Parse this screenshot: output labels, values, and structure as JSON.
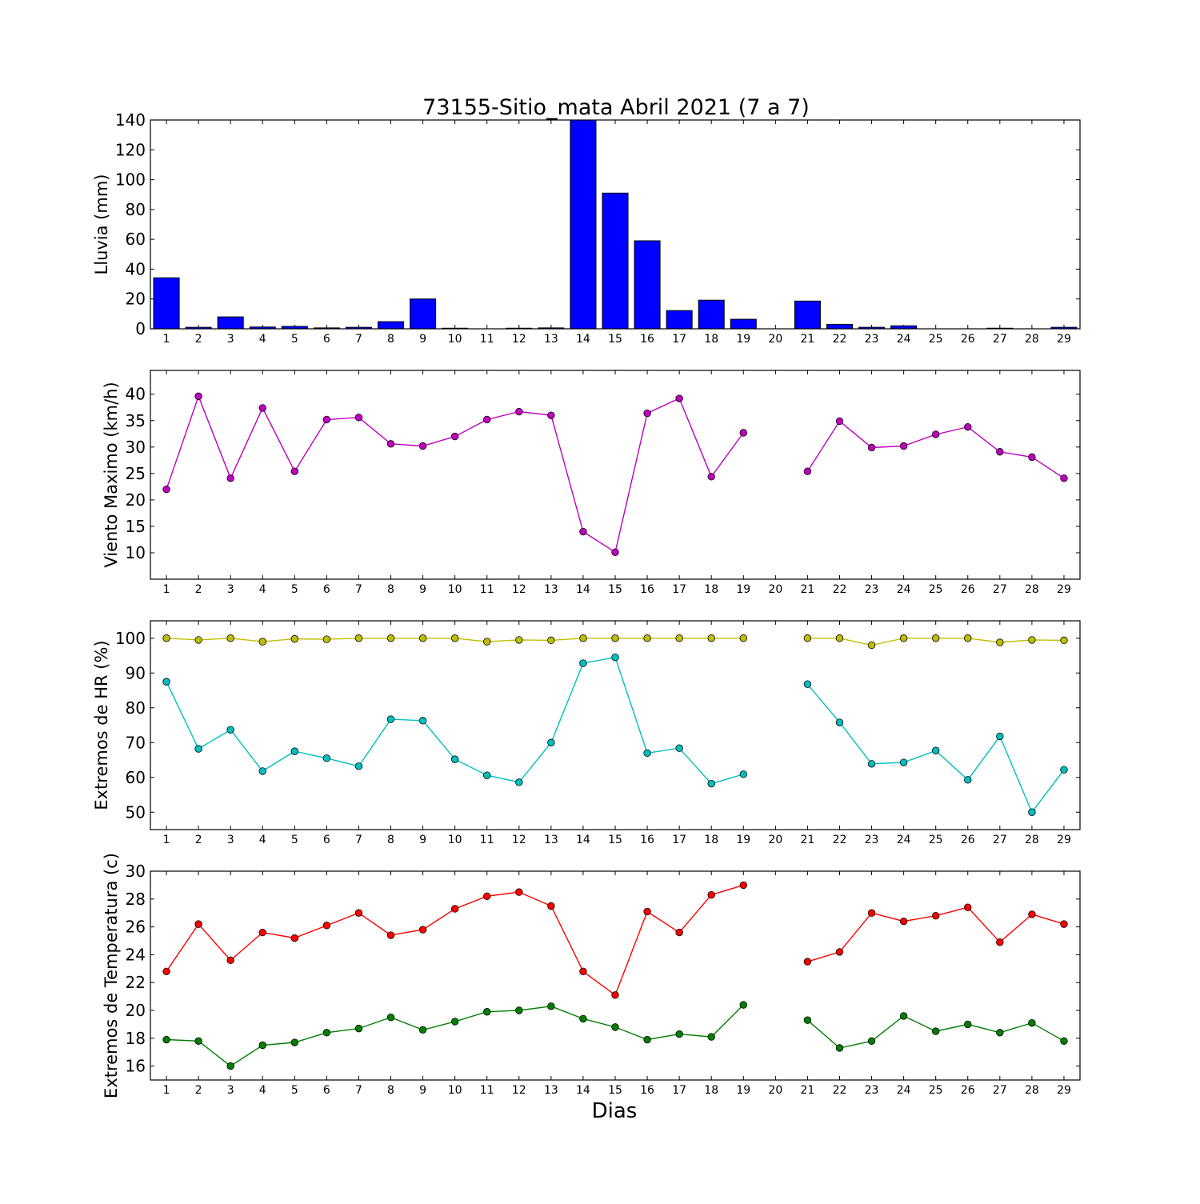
{
  "title": "73155-Sitio_mata Abril 2021  (7 a 7)",
  "xlabel": "Dias",
  "colors": {
    "rain": "#0000ff",
    "wind": "#bf00bf",
    "hr_max": "#bfbf00",
    "hr_min": "#00bfbf",
    "temp_max": "#ff0000",
    "temp_min": "#007f00"
  },
  "chart_data": [
    {
      "type": "bar",
      "ylabel": "Lluvia (mm)",
      "ylim": [
        0,
        140
      ],
      "yticks": [
        0,
        20,
        40,
        60,
        80,
        100,
        120,
        140
      ],
      "xlim": [
        0.5,
        29.5
      ],
      "categories": [
        1,
        2,
        3,
        4,
        5,
        6,
        7,
        8,
        9,
        10,
        11,
        12,
        13,
        14,
        15,
        16,
        17,
        18,
        19,
        20,
        21,
        22,
        23,
        24,
        25,
        26,
        27,
        28,
        29
      ],
      "series": [
        {
          "color_key": "rain",
          "values": [
            34.2,
            1.0,
            8.0,
            1.2,
            1.6,
            0.6,
            1.0,
            4.8,
            20.0,
            0.4,
            0,
            0.4,
            0.6,
            145.0,
            91.0,
            59.0,
            12.2,
            19.2,
            6.4,
            null,
            18.6,
            3.0,
            1.0,
            2.0,
            0,
            0,
            0.4,
            0,
            1.0
          ]
        }
      ]
    },
    {
      "type": "line",
      "ylabel": "Viento Maximo (km/h)",
      "ylim": [
        5,
        44.5
      ],
      "yticks": [
        10,
        15,
        20,
        25,
        30,
        35,
        40
      ],
      "xlim": [
        0.5,
        29.5
      ],
      "categories": [
        1,
        2,
        3,
        4,
        5,
        6,
        7,
        8,
        9,
        10,
        11,
        12,
        13,
        14,
        15,
        16,
        17,
        18,
        19,
        20,
        21,
        22,
        23,
        24,
        25,
        26,
        27,
        28,
        29
      ],
      "series": [
        {
          "color_key": "wind",
          "values": [
            22.0,
            39.6,
            24.1,
            37.4,
            25.4,
            35.2,
            35.6,
            30.6,
            30.2,
            32.0,
            35.2,
            36.7,
            36.0,
            14.0,
            10.1,
            36.4,
            39.2,
            24.4,
            32.7,
            null,
            25.4,
            34.9,
            29.9,
            30.2,
            32.4,
            33.8,
            29.1,
            28.1,
            24.1
          ]
        }
      ]
    },
    {
      "type": "line",
      "ylabel": "Extremos de HR (%)",
      "ylim": [
        45,
        105
      ],
      "yticks": [
        50,
        60,
        70,
        80,
        90,
        100
      ],
      "xlim": [
        0.5,
        29.5
      ],
      "categories": [
        1,
        2,
        3,
        4,
        5,
        6,
        7,
        8,
        9,
        10,
        11,
        12,
        13,
        14,
        15,
        16,
        17,
        18,
        19,
        20,
        21,
        22,
        23,
        24,
        25,
        26,
        27,
        28,
        29
      ],
      "series": [
        {
          "color_key": "hr_max",
          "values": [
            100,
            99.5,
            100,
            99,
            99.8,
            99.7,
            100,
            100,
            100,
            100,
            99,
            99.5,
            99.4,
            100,
            100,
            100,
            100,
            100,
            100,
            null,
            100,
            100,
            98,
            100,
            100,
            100,
            98.8,
            99.5,
            99.4
          ]
        },
        {
          "color_key": "hr_min",
          "values": [
            87.5,
            68.2,
            73.7,
            61.8,
            67.5,
            65.5,
            63.2,
            76.7,
            76.3,
            65.2,
            60.6,
            58.6,
            70.0,
            92.8,
            94.5,
            67.0,
            68.4,
            58.2,
            60.9,
            null,
            86.8,
            75.8,
            63.9,
            64.3,
            67.7,
            59.3,
            71.8,
            50.0,
            62.2
          ]
        }
      ]
    },
    {
      "type": "line",
      "ylabel": "Extremos de Temperatura (c)",
      "ylim": [
        15,
        30
      ],
      "yticks": [
        16,
        18,
        20,
        22,
        24,
        26,
        28,
        30
      ],
      "xlim": [
        0.5,
        29.5
      ],
      "categories": [
        1,
        2,
        3,
        4,
        5,
        6,
        7,
        8,
        9,
        10,
        11,
        12,
        13,
        14,
        15,
        16,
        17,
        18,
        19,
        20,
        21,
        22,
        23,
        24,
        25,
        26,
        27,
        28,
        29
      ],
      "series": [
        {
          "color_key": "temp_max",
          "values": [
            22.8,
            26.2,
            23.6,
            25.6,
            25.2,
            26.1,
            27.0,
            25.4,
            25.8,
            27.3,
            28.2,
            28.5,
            27.5,
            22.8,
            21.1,
            27.1,
            25.6,
            28.3,
            29.0,
            null,
            23.5,
            24.2,
            27.0,
            26.4,
            26.8,
            27.4,
            24.9,
            26.9,
            26.2
          ]
        },
        {
          "color_key": "temp_min",
          "values": [
            17.9,
            17.8,
            16.0,
            17.5,
            17.7,
            18.4,
            18.7,
            19.5,
            18.6,
            19.2,
            19.9,
            20.0,
            20.3,
            19.4,
            18.8,
            17.9,
            18.3,
            18.1,
            20.4,
            null,
            19.3,
            17.3,
            17.8,
            19.6,
            18.5,
            19.0,
            18.4,
            19.1,
            17.8
          ]
        }
      ]
    }
  ]
}
